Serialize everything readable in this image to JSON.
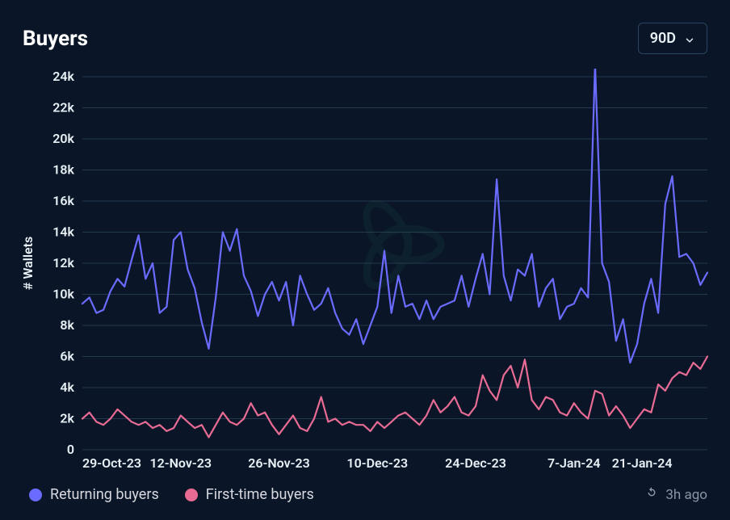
{
  "header": {
    "title": "Buyers",
    "range_selected": "90D"
  },
  "chart": {
    "type": "line",
    "background_color": "#0a1628",
    "grid_color": "#24384e",
    "text_color": "#e8f0f5",
    "ylabel": "# Wallets",
    "label_fontsize": 16,
    "axis_fontsize": 16,
    "line_width": 2.2,
    "ylim": [
      0,
      24000
    ],
    "ytick_step": 2000,
    "yticks": [
      0,
      2000,
      4000,
      6000,
      8000,
      10000,
      12000,
      14000,
      16000,
      18000,
      20000,
      22000,
      24000
    ],
    "ytick_labels": [
      "0",
      "2k",
      "4k",
      "6k",
      "8k",
      "10k",
      "12k",
      "14k",
      "16k",
      "18k",
      "20k",
      "22k",
      "24k"
    ],
    "xtick_labels": [
      "29-Oct-23",
      "12-Nov-23",
      "26-Nov-23",
      "10-Dec-23",
      "24-Dec-23",
      "7-Jan-24",
      "21-Jan-24"
    ],
    "xtick_indices": [
      0,
      14,
      28,
      42,
      56,
      70,
      84
    ],
    "n_points": 90,
    "series": [
      {
        "name": "Returning buyers",
        "color": "#6b6bff",
        "values": [
          9400,
          9800,
          8800,
          9000,
          10200,
          11000,
          10500,
          12200,
          13800,
          11000,
          12000,
          8800,
          9200,
          13500,
          14000,
          11600,
          10400,
          8200,
          6500,
          9800,
          14000,
          12800,
          14200,
          11200,
          10200,
          8600,
          10000,
          10800,
          9600,
          10800,
          8000,
          11200,
          10000,
          9000,
          9400,
          10400,
          8800,
          7800,
          7400,
          8400,
          6800,
          8000,
          9200,
          12800,
          8800,
          11200,
          9200,
          9400,
          8400,
          9600,
          8400,
          9200,
          9400,
          9600,
          11200,
          9200,
          11000,
          12600,
          10000,
          17400,
          11200,
          9600,
          11600,
          11200,
          12600,
          9200,
          10400,
          11000,
          8400,
          9200,
          9400,
          10400,
          9800,
          24800,
          12000,
          10800,
          7000,
          8400,
          5600,
          6800,
          9400,
          11000,
          8800,
          15800,
          17600,
          12400,
          12600,
          12000,
          10600,
          11400
        ]
      },
      {
        "name": "First-time buyers",
        "color": "#e86b94",
        "values": [
          2000,
          2400,
          1800,
          1600,
          2000,
          2600,
          2200,
          1800,
          1600,
          1800,
          1400,
          1600,
          1200,
          1400,
          2200,
          1800,
          1400,
          1600,
          800,
          1600,
          2400,
          1800,
          1600,
          2000,
          3000,
          2200,
          2400,
          1600,
          1000,
          1600,
          2200,
          1400,
          1200,
          2000,
          3400,
          1800,
          2000,
          1600,
          1800,
          1600,
          1600,
          1200,
          1800,
          1400,
          1800,
          2200,
          2400,
          2000,
          1600,
          2200,
          3200,
          2400,
          2800,
          3400,
          2400,
          2200,
          2800,
          4800,
          3800,
          3200,
          4800,
          5400,
          4000,
          5800,
          3200,
          2600,
          3400,
          3200,
          2400,
          2200,
          3000,
          2400,
          2000,
          3800,
          3600,
          2200,
          2800,
          2200,
          1400,
          2000,
          2600,
          2400,
          4200,
          3800,
          4600,
          5000,
          4800,
          5600,
          5200,
          6000
        ]
      }
    ],
    "watermark_color": "#1f6b55"
  },
  "legend": {
    "items": [
      {
        "label": "Returning buyers",
        "color": "#6b6bff"
      },
      {
        "label": "First-time buyers",
        "color": "#e86b94"
      }
    ]
  },
  "footer": {
    "updated_label": "3h ago"
  }
}
